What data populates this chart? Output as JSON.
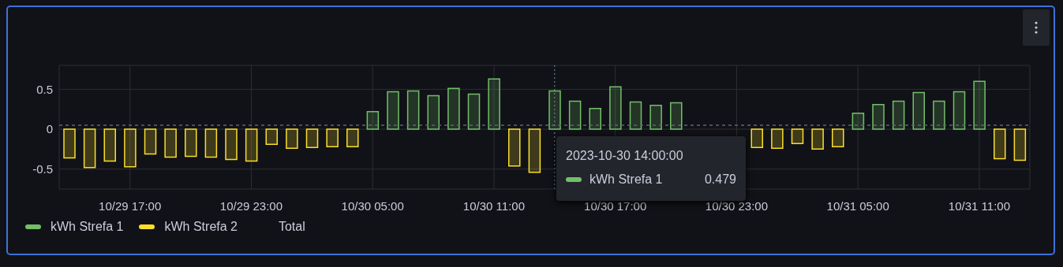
{
  "chart_data": {
    "type": "bar",
    "stacked": true,
    "x": [
      "2023-10-29T14:00",
      "2023-10-29T15:00",
      "2023-10-29T16:00",
      "2023-10-29T17:00",
      "2023-10-29T18:00",
      "2023-10-29T19:00",
      "2023-10-29T20:00",
      "2023-10-29T21:00",
      "2023-10-29T22:00",
      "2023-10-29T23:00",
      "2023-10-30T00:00",
      "2023-10-30T01:00",
      "2023-10-30T02:00",
      "2023-10-30T03:00",
      "2023-10-30T04:00",
      "2023-10-30T05:00",
      "2023-10-30T06:00",
      "2023-10-30T07:00",
      "2023-10-30T08:00",
      "2023-10-30T09:00",
      "2023-10-30T10:00",
      "2023-10-30T11:00",
      "2023-10-30T12:00",
      "2023-10-30T13:00",
      "2023-10-30T14:00",
      "2023-10-30T15:00",
      "2023-10-30T16:00",
      "2023-10-30T17:00",
      "2023-10-30T18:00",
      "2023-10-30T19:00",
      "2023-10-30T20:00",
      "2023-10-30T21:00",
      "2023-10-30T22:00",
      "2023-10-30T23:00",
      "2023-10-31T00:00",
      "2023-10-31T01:00",
      "2023-10-31T02:00",
      "2023-10-31T03:00",
      "2023-10-31T04:00",
      "2023-10-31T05:00",
      "2023-10-31T06:00",
      "2023-10-31T07:00",
      "2023-10-31T08:00",
      "2023-10-31T09:00",
      "2023-10-31T10:00",
      "2023-10-31T11:00",
      "2023-10-31T12:00",
      "2023-10-31T13:00"
    ],
    "series": [
      {
        "name": "kWh Strefa 1",
        "color": "#73bf69",
        "values": [
          null,
          null,
          null,
          null,
          null,
          null,
          null,
          null,
          null,
          null,
          null,
          null,
          null,
          null,
          null,
          0.22,
          0.47,
          0.48,
          0.42,
          0.51,
          0.44,
          0.63,
          null,
          null,
          0.479,
          0.35,
          0.26,
          0.53,
          0.34,
          0.3,
          0.33,
          null,
          null,
          null,
          null,
          null,
          null,
          null,
          null,
          0.2,
          0.31,
          0.35,
          0.46,
          0.35,
          0.47,
          0.6,
          null,
          null
        ]
      },
      {
        "name": "kWh Strefa 2",
        "color": "#fade2a",
        "values": [
          -0.36,
          -0.48,
          -0.4,
          -0.47,
          -0.31,
          -0.35,
          -0.34,
          -0.35,
          -0.38,
          -0.4,
          -0.19,
          -0.24,
          -0.23,
          -0.22,
          -0.22,
          null,
          null,
          null,
          null,
          null,
          null,
          null,
          -0.46,
          -0.54,
          null,
          null,
          null,
          null,
          null,
          null,
          null,
          null,
          null,
          null,
          -0.23,
          -0.24,
          -0.18,
          -0.25,
          -0.22,
          null,
          null,
          null,
          null,
          null,
          null,
          null,
          -0.37,
          -0.39
        ]
      },
      {
        "name": "Total",
        "values": [
          null,
          null,
          null,
          null,
          null,
          null,
          null,
          null,
          null,
          null,
          null,
          null,
          null,
          null,
          null,
          null,
          null,
          null,
          null,
          null,
          null,
          null,
          null,
          null,
          null,
          null,
          null,
          null,
          null,
          null,
          null,
          null,
          null,
          null,
          null,
          null,
          null,
          null,
          null,
          null,
          null,
          null,
          null,
          null,
          null,
          null,
          null,
          null
        ]
      }
    ],
    "xlim": [
      "2023-10-29T13:30",
      "2023-10-31T13:30"
    ],
    "xticks": [
      {
        "value": "2023-10-29T17:00",
        "label": "10/29 17:00"
      },
      {
        "value": "2023-10-29T23:00",
        "label": "10/29 23:00"
      },
      {
        "value": "2023-10-30T05:00",
        "label": "10/30 05:00"
      },
      {
        "value": "2023-10-30T11:00",
        "label": "10/30 11:00"
      },
      {
        "value": "2023-10-30T17:00",
        "label": "10/30 17:00"
      },
      {
        "value": "2023-10-30T23:00",
        "label": "10/30 23:00"
      },
      {
        "value": "2023-10-31T05:00",
        "label": "10/31 05:00"
      },
      {
        "value": "2023-10-31T11:00",
        "label": "10/31 11:00"
      }
    ],
    "ylim": [
      -0.75,
      0.8
    ],
    "yticks": [
      -0.5,
      0,
      0.5
    ],
    "grid": true,
    "legend": "bottom left",
    "ref_lines": [
      {
        "axis": "y",
        "value": 0.05,
        "color": "#5a6678",
        "line_style": "dashed"
      },
      {
        "axis": "x",
        "value": "2023-10-30T14:00",
        "color": "#6f94ad",
        "line_style": "dotted"
      }
    ],
    "annotations": [
      "2023-10-30 14:00:00",
      "0.479"
    ]
  }
}
